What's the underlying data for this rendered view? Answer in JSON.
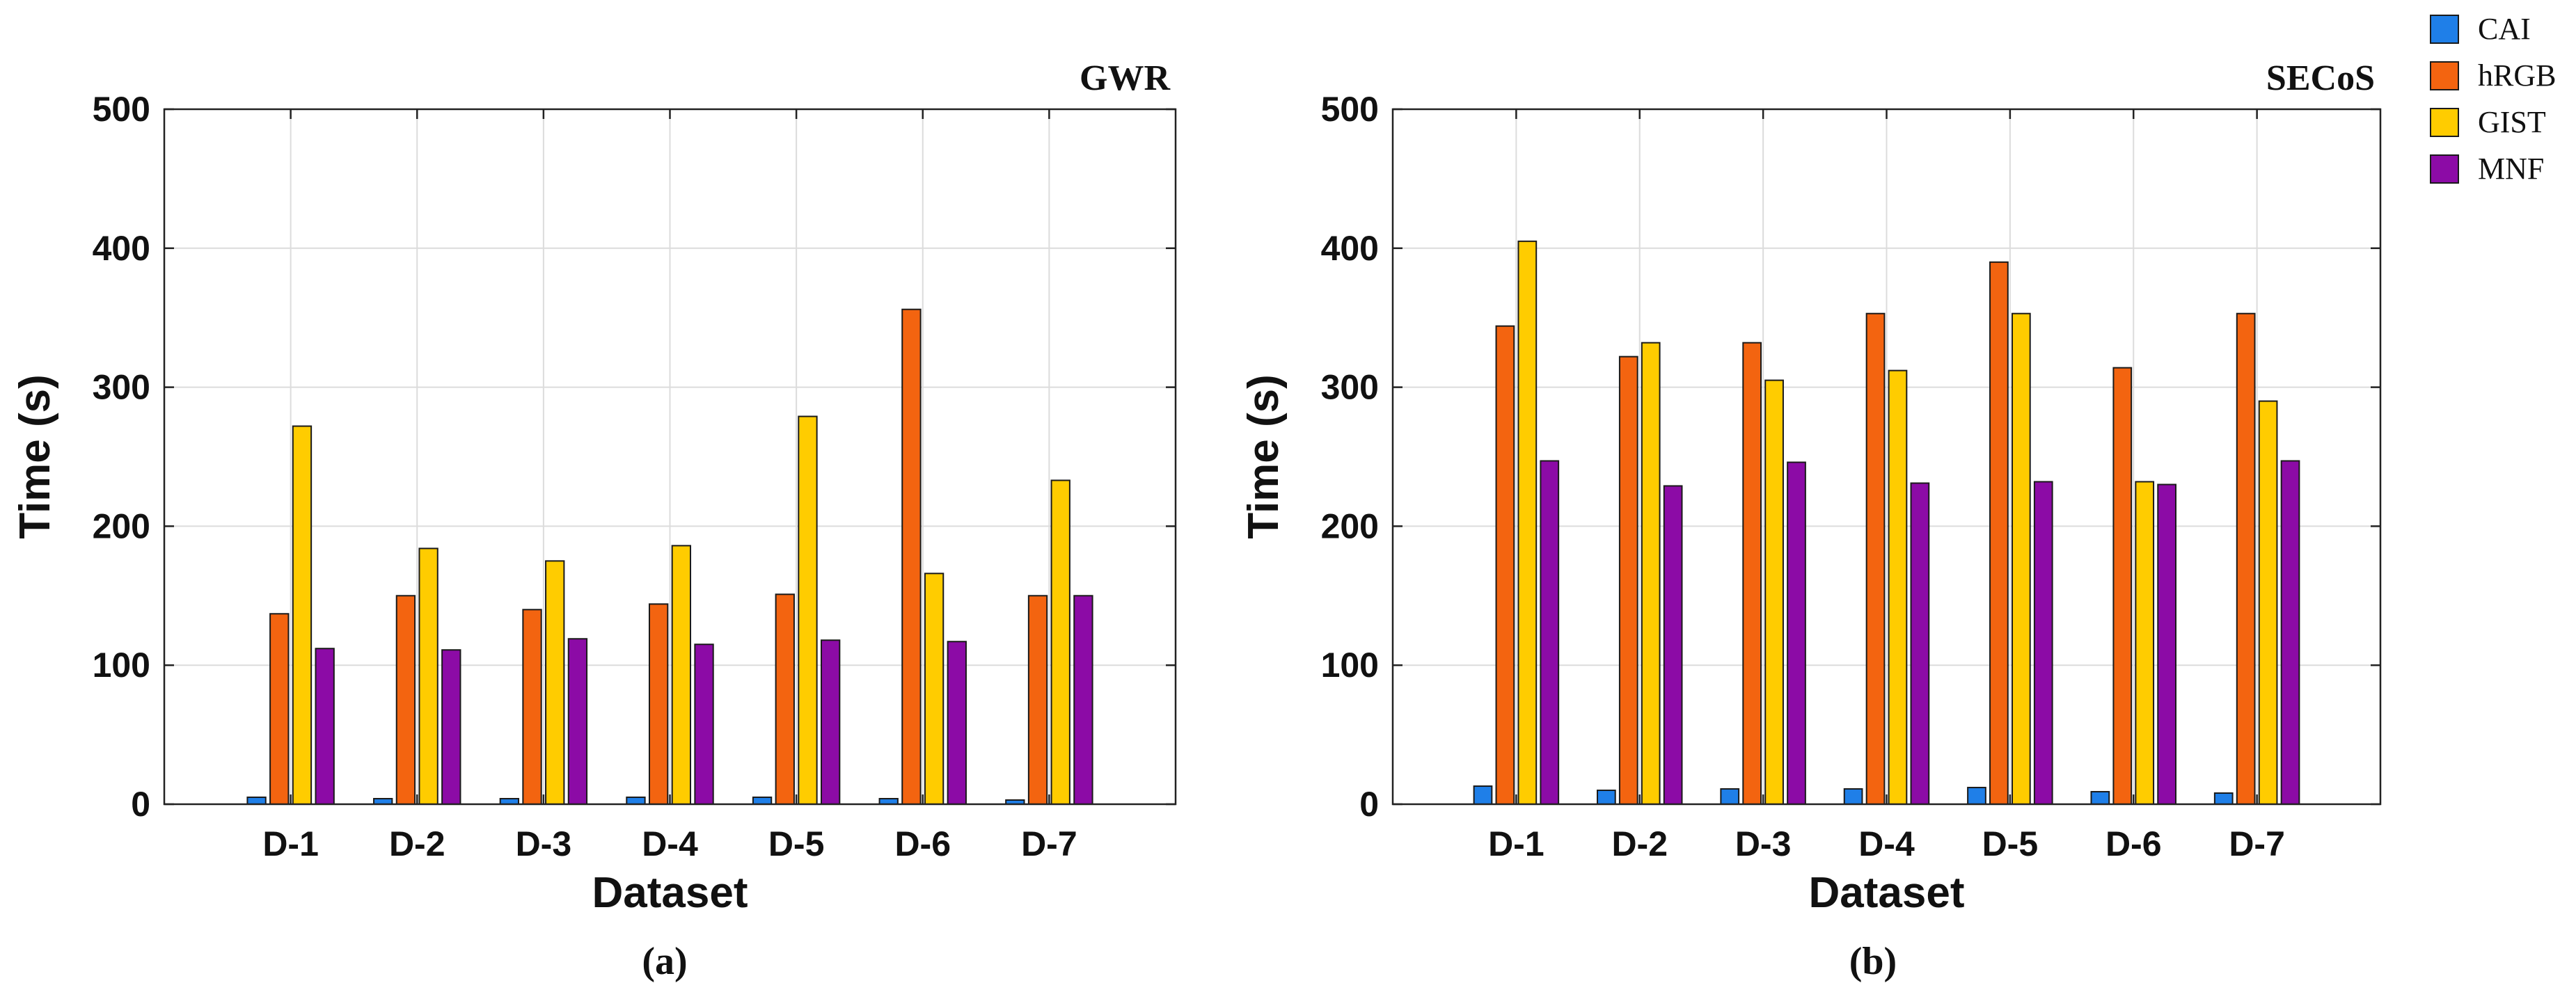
{
  "chart_data": [
    {
      "type": "bar",
      "title": "GWR",
      "caption": "(a)",
      "xlabel": "Dataset",
      "ylabel": "Time (s)",
      "ylim": [
        0,
        500
      ],
      "yticks": [
        0,
        100,
        200,
        300,
        400,
        500
      ],
      "grid": true,
      "categories": [
        "D-1",
        "D-2",
        "D-3",
        "D-4",
        "D-5",
        "D-6",
        "D-7"
      ],
      "series": [
        {
          "name": "CAI",
          "values": [
            5,
            4,
            4,
            5,
            5,
            4,
            3
          ]
        },
        {
          "name": "hRGB",
          "values": [
            137,
            150,
            140,
            144,
            151,
            356,
            150
          ]
        },
        {
          "name": "GIST",
          "values": [
            272,
            184,
            175,
            186,
            279,
            166,
            233
          ]
        },
        {
          "name": "MNF",
          "values": [
            112,
            111,
            119,
            115,
            118,
            117,
            150
          ]
        }
      ]
    },
    {
      "type": "bar",
      "title": "SECoS",
      "caption": "(b)",
      "xlabel": "Dataset",
      "ylabel": "Time (s)",
      "ylim": [
        0,
        500
      ],
      "yticks": [
        0,
        100,
        200,
        300,
        400,
        500
      ],
      "grid": true,
      "categories": [
        "D-1",
        "D-2",
        "D-3",
        "D-4",
        "D-5",
        "D-6",
        "D-7"
      ],
      "series": [
        {
          "name": "CAI",
          "values": [
            13,
            10,
            11,
            11,
            12,
            9,
            8
          ]
        },
        {
          "name": "hRGB",
          "values": [
            344,
            322,
            332,
            353,
            390,
            314,
            353
          ]
        },
        {
          "name": "GIST",
          "values": [
            405,
            332,
            305,
            312,
            353,
            232,
            290
          ]
        },
        {
          "name": "MNF",
          "values": [
            247,
            229,
            246,
            231,
            232,
            230,
            247
          ]
        }
      ]
    }
  ],
  "legend": {
    "position": "top-right",
    "items": [
      {
        "label": "CAI",
        "color": "#1f7fe8"
      },
      {
        "label": "hRGB",
        "color": "#f36410"
      },
      {
        "label": "GIST",
        "color": "#ffcc00"
      },
      {
        "label": "MNF",
        "color": "#8c0ba6"
      }
    ]
  }
}
